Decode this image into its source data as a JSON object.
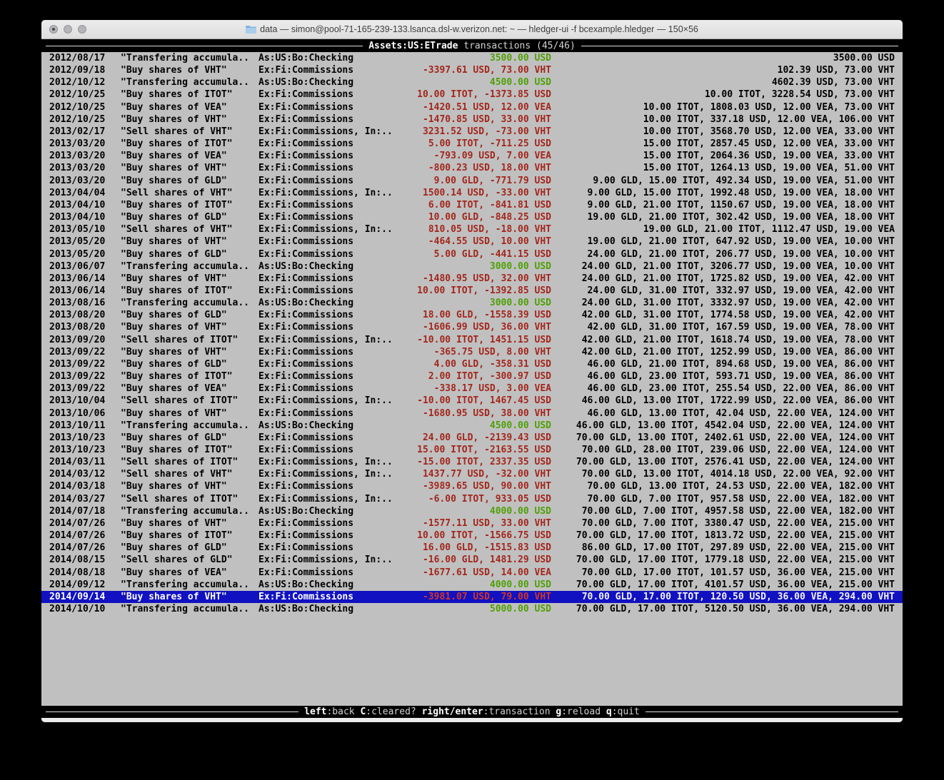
{
  "window": {
    "title": "data — simon@pool-71-165-239-133.lsanca.dsl-w.verizon.net: ~ — hledger-ui -f bcexample.hledger — 150×56",
    "traffic_lights": [
      "close",
      "minimize",
      "zoom"
    ]
  },
  "screen": {
    "header": {
      "account": "Assets:US:ETrade",
      "suffix": " transactions (45/46)"
    },
    "footer": {
      "keys": [
        {
          "key": "left",
          "desc": "back"
        },
        {
          "key": "C",
          "desc": "cleared?"
        },
        {
          "key": "right/enter",
          "desc": "transaction"
        },
        {
          "key": "g",
          "desc": "reload"
        },
        {
          "key": "q",
          "desc": "quit"
        }
      ]
    }
  },
  "colors": {
    "terminal_bg": "#c0c0c0",
    "bar_bg": "#000000",
    "amount_green": "#4fa005",
    "amount_red": "#a3261c",
    "selected_bg": "#1111c2",
    "selected_red": "#d03528"
  },
  "table": {
    "rows": [
      {
        "date": "2012/08/17",
        "desc": "\"Transfering accumula..",
        "account": "As:US:Bo:Checking",
        "change": "3500.00 USD",
        "change_color": "green",
        "balance": "3500.00 USD",
        "selected": false
      },
      {
        "date": "2012/09/18",
        "desc": "\"Buy shares of VHT\"",
        "account": "Ex:Fi:Commissions",
        "change": "-3397.61 USD, 73.00 VHT",
        "change_color": "red",
        "balance": "102.39 USD, 73.00 VHT",
        "selected": false
      },
      {
        "date": "2012/10/12",
        "desc": "\"Transfering accumula..",
        "account": "As:US:Bo:Checking",
        "change": "4500.00 USD",
        "change_color": "green",
        "balance": "4602.39 USD, 73.00 VHT",
        "selected": false
      },
      {
        "date": "2012/10/25",
        "desc": "\"Buy shares of ITOT\"",
        "account": "Ex:Fi:Commissions",
        "change": "10.00 ITOT, -1373.85 USD",
        "change_color": "red",
        "balance": "10.00 ITOT, 3228.54 USD, 73.00 VHT",
        "selected": false
      },
      {
        "date": "2012/10/25",
        "desc": "\"Buy shares of VEA\"",
        "account": "Ex:Fi:Commissions",
        "change": "-1420.51 USD, 12.00 VEA",
        "change_color": "red",
        "balance": "10.00 ITOT, 1808.03 USD, 12.00 VEA, 73.00 VHT",
        "selected": false
      },
      {
        "date": "2012/10/25",
        "desc": "\"Buy shares of VHT\"",
        "account": "Ex:Fi:Commissions",
        "change": "-1470.85 USD, 33.00 VHT",
        "change_color": "red",
        "balance": "10.00 ITOT, 337.18 USD, 12.00 VEA, 106.00 VHT",
        "selected": false
      },
      {
        "date": "2013/02/17",
        "desc": "\"Sell shares of VHT\"",
        "account": "Ex:Fi:Commissions, In:..",
        "change": "3231.52 USD, -73.00 VHT",
        "change_color": "red",
        "balance": "10.00 ITOT, 3568.70 USD, 12.00 VEA, 33.00 VHT",
        "selected": false
      },
      {
        "date": "2013/03/20",
        "desc": "\"Buy shares of ITOT\"",
        "account": "Ex:Fi:Commissions",
        "change": "5.00 ITOT, -711.25 USD",
        "change_color": "red",
        "balance": "15.00 ITOT, 2857.45 USD, 12.00 VEA, 33.00 VHT",
        "selected": false
      },
      {
        "date": "2013/03/20",
        "desc": "\"Buy shares of VEA\"",
        "account": "Ex:Fi:Commissions",
        "change": "-793.09 USD, 7.00 VEA",
        "change_color": "red",
        "balance": "15.00 ITOT, 2064.36 USD, 19.00 VEA, 33.00 VHT",
        "selected": false
      },
      {
        "date": "2013/03/20",
        "desc": "\"Buy shares of VHT\"",
        "account": "Ex:Fi:Commissions",
        "change": "-800.23 USD, 18.00 VHT",
        "change_color": "red",
        "balance": "15.00 ITOT, 1264.13 USD, 19.00 VEA, 51.00 VHT",
        "selected": false
      },
      {
        "date": "2013/03/20",
        "desc": "\"Buy shares of GLD\"",
        "account": "Ex:Fi:Commissions",
        "change": "9.00 GLD, -771.79 USD",
        "change_color": "red",
        "balance": "9.00 GLD, 15.00 ITOT, 492.34 USD, 19.00 VEA, 51.00 VHT",
        "selected": false
      },
      {
        "date": "2013/04/04",
        "desc": "\"Sell shares of VHT\"",
        "account": "Ex:Fi:Commissions, In:..",
        "change": "1500.14 USD, -33.00 VHT",
        "change_color": "red",
        "balance": "9.00 GLD, 15.00 ITOT, 1992.48 USD, 19.00 VEA, 18.00 VHT",
        "selected": false
      },
      {
        "date": "2013/04/10",
        "desc": "\"Buy shares of ITOT\"",
        "account": "Ex:Fi:Commissions",
        "change": "6.00 ITOT, -841.81 USD",
        "change_color": "red",
        "balance": "9.00 GLD, 21.00 ITOT, 1150.67 USD, 19.00 VEA, 18.00 VHT",
        "selected": false
      },
      {
        "date": "2013/04/10",
        "desc": "\"Buy shares of GLD\"",
        "account": "Ex:Fi:Commissions",
        "change": "10.00 GLD, -848.25 USD",
        "change_color": "red",
        "balance": "19.00 GLD, 21.00 ITOT, 302.42 USD, 19.00 VEA, 18.00 VHT",
        "selected": false
      },
      {
        "date": "2013/05/10",
        "desc": "\"Sell shares of VHT\"",
        "account": "Ex:Fi:Commissions, In:..",
        "change": "810.05 USD, -18.00 VHT",
        "change_color": "red",
        "balance": "19.00 GLD, 21.00 ITOT, 1112.47 USD, 19.00 VEA",
        "selected": false
      },
      {
        "date": "2013/05/20",
        "desc": "\"Buy shares of VHT\"",
        "account": "Ex:Fi:Commissions",
        "change": "-464.55 USD, 10.00 VHT",
        "change_color": "red",
        "balance": "19.00 GLD, 21.00 ITOT, 647.92 USD, 19.00 VEA, 10.00 VHT",
        "selected": false
      },
      {
        "date": "2013/05/20",
        "desc": "\"Buy shares of GLD\"",
        "account": "Ex:Fi:Commissions",
        "change": "5.00 GLD, -441.15 USD",
        "change_color": "red",
        "balance": "24.00 GLD, 21.00 ITOT, 206.77 USD, 19.00 VEA, 10.00 VHT",
        "selected": false
      },
      {
        "date": "2013/06/07",
        "desc": "\"Transfering accumula..",
        "account": "As:US:Bo:Checking",
        "change": "3000.00 USD",
        "change_color": "green",
        "balance": "24.00 GLD, 21.00 ITOT, 3206.77 USD, 19.00 VEA, 10.00 VHT",
        "selected": false
      },
      {
        "date": "2013/06/14",
        "desc": "\"Buy shares of VHT\"",
        "account": "Ex:Fi:Commissions",
        "change": "-1480.95 USD, 32.00 VHT",
        "change_color": "red",
        "balance": "24.00 GLD, 21.00 ITOT, 1725.82 USD, 19.00 VEA, 42.00 VHT",
        "selected": false
      },
      {
        "date": "2013/06/14",
        "desc": "\"Buy shares of ITOT\"",
        "account": "Ex:Fi:Commissions",
        "change": "10.00 ITOT, -1392.85 USD",
        "change_color": "red",
        "balance": "24.00 GLD, 31.00 ITOT, 332.97 USD, 19.00 VEA, 42.00 VHT",
        "selected": false
      },
      {
        "date": "2013/08/16",
        "desc": "\"Transfering accumula..",
        "account": "As:US:Bo:Checking",
        "change": "3000.00 USD",
        "change_color": "green",
        "balance": "24.00 GLD, 31.00 ITOT, 3332.97 USD, 19.00 VEA, 42.00 VHT",
        "selected": false
      },
      {
        "date": "2013/08/20",
        "desc": "\"Buy shares of GLD\"",
        "account": "Ex:Fi:Commissions",
        "change": "18.00 GLD, -1558.39 USD",
        "change_color": "red",
        "balance": "42.00 GLD, 31.00 ITOT, 1774.58 USD, 19.00 VEA, 42.00 VHT",
        "selected": false
      },
      {
        "date": "2013/08/20",
        "desc": "\"Buy shares of VHT\"",
        "account": "Ex:Fi:Commissions",
        "change": "-1606.99 USD, 36.00 VHT",
        "change_color": "red",
        "balance": "42.00 GLD, 31.00 ITOT, 167.59 USD, 19.00 VEA, 78.00 VHT",
        "selected": false
      },
      {
        "date": "2013/09/20",
        "desc": "\"Sell shares of ITOT\"",
        "account": "Ex:Fi:Commissions, In:..",
        "change": "-10.00 ITOT, 1451.15 USD",
        "change_color": "red",
        "balance": "42.00 GLD, 21.00 ITOT, 1618.74 USD, 19.00 VEA, 78.00 VHT",
        "selected": false
      },
      {
        "date": "2013/09/22",
        "desc": "\"Buy shares of VHT\"",
        "account": "Ex:Fi:Commissions",
        "change": "-365.75 USD, 8.00 VHT",
        "change_color": "red",
        "balance": "42.00 GLD, 21.00 ITOT, 1252.99 USD, 19.00 VEA, 86.00 VHT",
        "selected": false
      },
      {
        "date": "2013/09/22",
        "desc": "\"Buy shares of GLD\"",
        "account": "Ex:Fi:Commissions",
        "change": "4.00 GLD, -358.31 USD",
        "change_color": "red",
        "balance": "46.00 GLD, 21.00 ITOT, 894.68 USD, 19.00 VEA, 86.00 VHT",
        "selected": false
      },
      {
        "date": "2013/09/22",
        "desc": "\"Buy shares of ITOT\"",
        "account": "Ex:Fi:Commissions",
        "change": "2.00 ITOT, -300.97 USD",
        "change_color": "red",
        "balance": "46.00 GLD, 23.00 ITOT, 593.71 USD, 19.00 VEA, 86.00 VHT",
        "selected": false
      },
      {
        "date": "2013/09/22",
        "desc": "\"Buy shares of VEA\"",
        "account": "Ex:Fi:Commissions",
        "change": "-338.17 USD, 3.00 VEA",
        "change_color": "red",
        "balance": "46.00 GLD, 23.00 ITOT, 255.54 USD, 22.00 VEA, 86.00 VHT",
        "selected": false
      },
      {
        "date": "2013/10/04",
        "desc": "\"Sell shares of ITOT\"",
        "account": "Ex:Fi:Commissions, In:..",
        "change": "-10.00 ITOT, 1467.45 USD",
        "change_color": "red",
        "balance": "46.00 GLD, 13.00 ITOT, 1722.99 USD, 22.00 VEA, 86.00 VHT",
        "selected": false
      },
      {
        "date": "2013/10/06",
        "desc": "\"Buy shares of VHT\"",
        "account": "Ex:Fi:Commissions",
        "change": "-1680.95 USD, 38.00 VHT",
        "change_color": "red",
        "balance": "46.00 GLD, 13.00 ITOT, 42.04 USD, 22.00 VEA, 124.00 VHT",
        "selected": false
      },
      {
        "date": "2013/10/11",
        "desc": "\"Transfering accumula..",
        "account": "As:US:Bo:Checking",
        "change": "4500.00 USD",
        "change_color": "green",
        "balance": "46.00 GLD, 13.00 ITOT, 4542.04 USD, 22.00 VEA, 124.00 VHT",
        "selected": false
      },
      {
        "date": "2013/10/23",
        "desc": "\"Buy shares of GLD\"",
        "account": "Ex:Fi:Commissions",
        "change": "24.00 GLD, -2139.43 USD",
        "change_color": "red",
        "balance": "70.00 GLD, 13.00 ITOT, 2402.61 USD, 22.00 VEA, 124.00 VHT",
        "selected": false
      },
      {
        "date": "2013/10/23",
        "desc": "\"Buy shares of ITOT\"",
        "account": "Ex:Fi:Commissions",
        "change": "15.00 ITOT, -2163.55 USD",
        "change_color": "red",
        "balance": "70.00 GLD, 28.00 ITOT, 239.06 USD, 22.00 VEA, 124.00 VHT",
        "selected": false
      },
      {
        "date": "2014/03/11",
        "desc": "\"Sell shares of ITOT\"",
        "account": "Ex:Fi:Commissions, In:..",
        "change": "-15.00 ITOT, 2337.35 USD",
        "change_color": "red",
        "balance": "70.00 GLD, 13.00 ITOT, 2576.41 USD, 22.00 VEA, 124.00 VHT",
        "selected": false
      },
      {
        "date": "2014/03/12",
        "desc": "\"Sell shares of VHT\"",
        "account": "Ex:Fi:Commissions, In:..",
        "change": "1437.77 USD, -32.00 VHT",
        "change_color": "red",
        "balance": "70.00 GLD, 13.00 ITOT, 4014.18 USD, 22.00 VEA, 92.00 VHT",
        "selected": false
      },
      {
        "date": "2014/03/18",
        "desc": "\"Buy shares of VHT\"",
        "account": "Ex:Fi:Commissions",
        "change": "-3989.65 USD, 90.00 VHT",
        "change_color": "red",
        "balance": "70.00 GLD, 13.00 ITOT, 24.53 USD, 22.00 VEA, 182.00 VHT",
        "selected": false
      },
      {
        "date": "2014/03/27",
        "desc": "\"Sell shares of ITOT\"",
        "account": "Ex:Fi:Commissions, In:..",
        "change": "-6.00 ITOT, 933.05 USD",
        "change_color": "red",
        "balance": "70.00 GLD, 7.00 ITOT, 957.58 USD, 22.00 VEA, 182.00 VHT",
        "selected": false
      },
      {
        "date": "2014/07/18",
        "desc": "\"Transfering accumula..",
        "account": "As:US:Bo:Checking",
        "change": "4000.00 USD",
        "change_color": "green",
        "balance": "70.00 GLD, 7.00 ITOT, 4957.58 USD, 22.00 VEA, 182.00 VHT",
        "selected": false
      },
      {
        "date": "2014/07/26",
        "desc": "\"Buy shares of VHT\"",
        "account": "Ex:Fi:Commissions",
        "change": "-1577.11 USD, 33.00 VHT",
        "change_color": "red",
        "balance": "70.00 GLD, 7.00 ITOT, 3380.47 USD, 22.00 VEA, 215.00 VHT",
        "selected": false
      },
      {
        "date": "2014/07/26",
        "desc": "\"Buy shares of ITOT\"",
        "account": "Ex:Fi:Commissions",
        "change": "10.00 ITOT, -1566.75 USD",
        "change_color": "red",
        "balance": "70.00 GLD, 17.00 ITOT, 1813.72 USD, 22.00 VEA, 215.00 VHT",
        "selected": false
      },
      {
        "date": "2014/07/26",
        "desc": "\"Buy shares of GLD\"",
        "account": "Ex:Fi:Commissions",
        "change": "16.00 GLD, -1515.83 USD",
        "change_color": "red",
        "balance": "86.00 GLD, 17.00 ITOT, 297.89 USD, 22.00 VEA, 215.00 VHT",
        "selected": false
      },
      {
        "date": "2014/08/15",
        "desc": "\"Sell shares of GLD\"",
        "account": "Ex:Fi:Commissions, In:..",
        "change": "-16.00 GLD, 1481.29 USD",
        "change_color": "red",
        "balance": "70.00 GLD, 17.00 ITOT, 1779.18 USD, 22.00 VEA, 215.00 VHT",
        "selected": false
      },
      {
        "date": "2014/08/18",
        "desc": "\"Buy shares of VEA\"",
        "account": "Ex:Fi:Commissions",
        "change": "-1677.61 USD, 14.00 VEA",
        "change_color": "red",
        "balance": "70.00 GLD, 17.00 ITOT, 101.57 USD, 36.00 VEA, 215.00 VHT",
        "selected": false
      },
      {
        "date": "2014/09/12",
        "desc": "\"Transfering accumula..",
        "account": "As:US:Bo:Checking",
        "change": "4000.00 USD",
        "change_color": "green",
        "balance": "70.00 GLD, 17.00 ITOT, 4101.57 USD, 36.00 VEA, 215.00 VHT",
        "selected": false
      },
      {
        "date": "2014/09/14",
        "desc": "\"Buy shares of VHT\"",
        "account": "Ex:Fi:Commissions",
        "change": "-3981.07 USD, 79.00 VHT",
        "change_color": "red",
        "balance": "70.00 GLD, 17.00 ITOT, 120.50 USD, 36.00 VEA, 294.00 VHT",
        "selected": true
      },
      {
        "date": "2014/10/10",
        "desc": "\"Transfering accumula..",
        "account": "As:US:Bo:Checking",
        "change": "5000.00 USD",
        "change_color": "green",
        "balance": "70.00 GLD, 17.00 ITOT, 5120.50 USD, 36.00 VEA, 294.00 VHT",
        "selected": false
      }
    ]
  }
}
